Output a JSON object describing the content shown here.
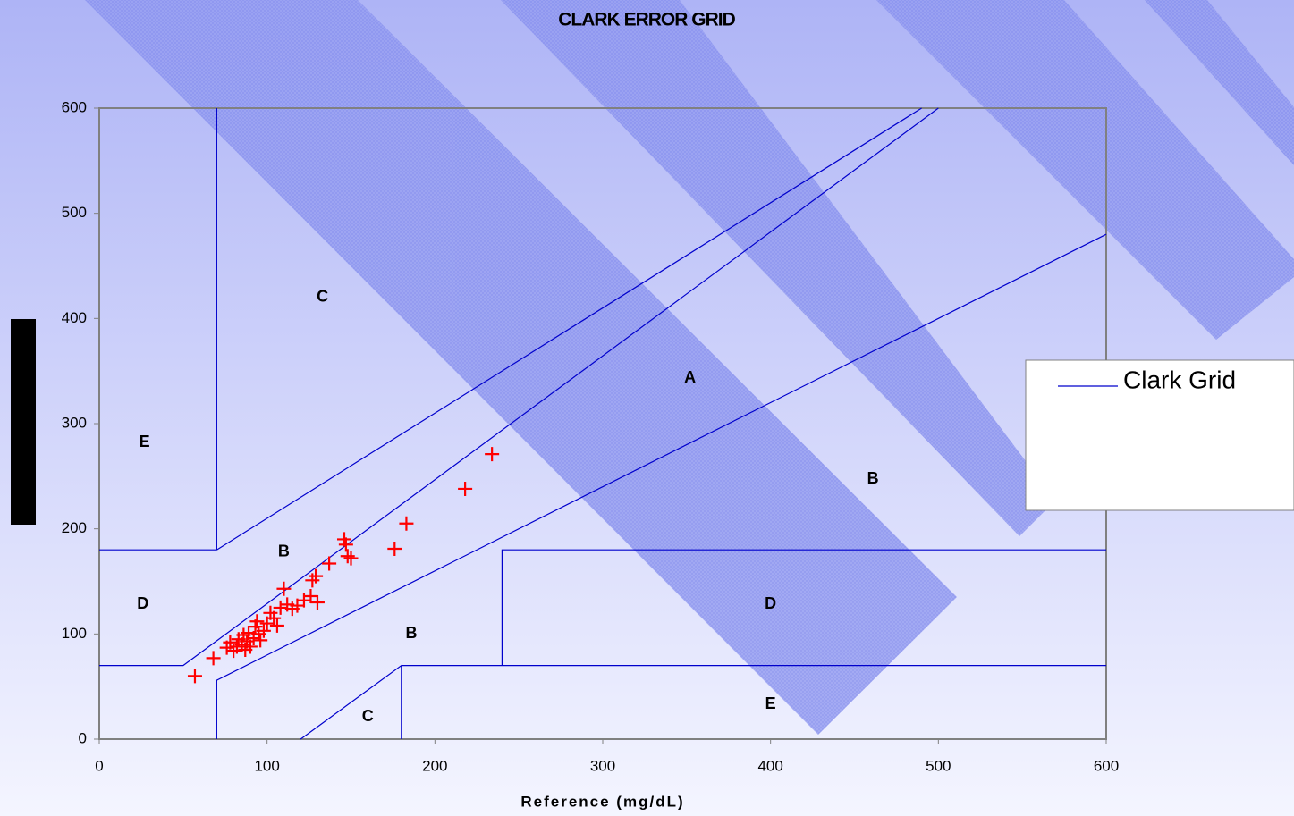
{
  "chart_data": {
    "type": "scatter",
    "title": "CLARK ERROR GRID",
    "x_label": "Reference (mg/dL)",
    "xlim": [
      0,
      600
    ],
    "ylim": [
      0,
      600
    ],
    "xticks": [
      0,
      100,
      200,
      300,
      400,
      500,
      600
    ],
    "yticks": [
      0,
      100,
      200,
      300,
      400,
      500,
      600
    ],
    "legend": "right",
    "grid_lines": {
      "name": "Clark Grid",
      "color": "#0000cc",
      "lines": [
        {
          "x": [
            70,
            70
          ],
          "y": [
            180,
            600
          ]
        },
        {
          "x": [
            0,
            70
          ],
          "y": [
            180,
            180
          ]
        },
        {
          "x": [
            70,
            490
          ],
          "y": [
            180,
            600
          ]
        },
        {
          "x": [
            0,
            50,
            500
          ],
          "y": [
            70,
            70,
            600
          ]
        },
        {
          "x": [
            70,
            70,
            100,
            600
          ],
          "y": [
            0,
            56,
            80,
            480
          ]
        },
        {
          "x": [
            120,
            180,
            180
          ],
          "y": [
            0,
            70,
            0
          ]
        },
        {
          "x": [
            180,
            600
          ],
          "y": [
            70,
            70
          ]
        },
        {
          "x": [
            240,
            240,
            600
          ],
          "y": [
            70,
            180,
            180
          ]
        }
      ]
    },
    "points": {
      "color": "#ff0000",
      "x": [
        57,
        68,
        76,
        78,
        80,
        82,
        83,
        85,
        86,
        87,
        88,
        89,
        90,
        92,
        93,
        94,
        95,
        96,
        98,
        100,
        102,
        104,
        106,
        108,
        110,
        112,
        115,
        118,
        122,
        126,
        127,
        130,
        129,
        137,
        146,
        147,
        150,
        148,
        176,
        183,
        218,
        234
      ],
      "y": [
        60,
        77,
        87,
        92,
        84,
        88,
        95,
        90,
        99,
        85,
        93,
        101,
        88,
        96,
        107,
        112,
        100,
        94,
        103,
        110,
        120,
        115,
        108,
        125,
        143,
        128,
        124,
        127,
        132,
        136,
        151,
        130,
        155,
        167,
        190,
        185,
        172,
        174,
        181,
        205,
        238,
        271
      ]
    },
    "zone_labels": [
      {
        "text": "C",
        "x": 133,
        "y": 420
      },
      {
        "text": "E",
        "x": 27,
        "y": 282
      },
      {
        "text": "D",
        "x": 26,
        "y": 128
      },
      {
        "text": "B",
        "x": 110,
        "y": 178
      },
      {
        "text": "A",
        "x": 352,
        "y": 343
      },
      {
        "text": "B",
        "x": 461,
        "y": 247
      },
      {
        "text": "D",
        "x": 400,
        "y": 128
      },
      {
        "text": "B",
        "x": 186,
        "y": 100
      },
      {
        "text": "C",
        "x": 160,
        "y": 21
      },
      {
        "text": "E",
        "x": 400,
        "y": 33
      }
    ]
  }
}
